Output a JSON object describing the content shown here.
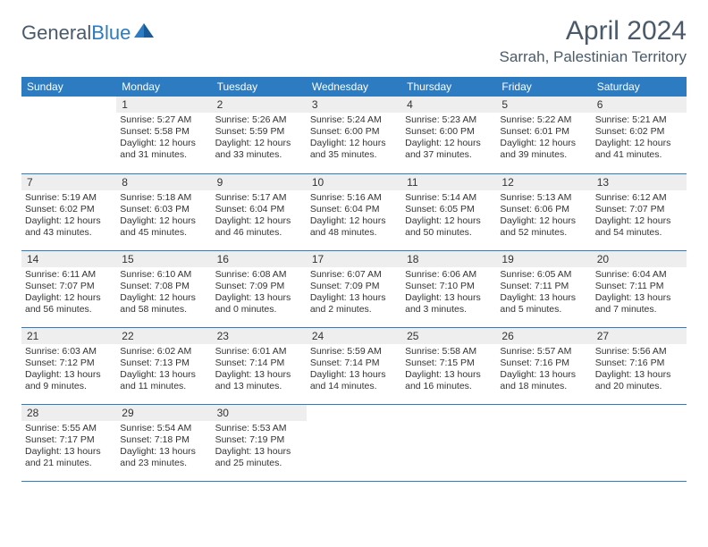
{
  "logo": {
    "text_part1": "General",
    "text_part2": "Blue"
  },
  "title": "April 2024",
  "location": "Sarrah, Palestinian Territory",
  "colors": {
    "header_bg": "#2d7bc0",
    "header_text": "#ffffff",
    "day_number_bg": "#eeeeee",
    "text": "#333333",
    "border": "#2d7bc0",
    "logo_gray": "#4a5a6a",
    "logo_blue": "#2d7bc0"
  },
  "day_names": [
    "Sunday",
    "Monday",
    "Tuesday",
    "Wednesday",
    "Thursday",
    "Friday",
    "Saturday"
  ],
  "weeks": [
    [
      null,
      {
        "n": "1",
        "sr": "5:27 AM",
        "ss": "5:58 PM",
        "dl": "12 hours and 31 minutes."
      },
      {
        "n": "2",
        "sr": "5:26 AM",
        "ss": "5:59 PM",
        "dl": "12 hours and 33 minutes."
      },
      {
        "n": "3",
        "sr": "5:24 AM",
        "ss": "6:00 PM",
        "dl": "12 hours and 35 minutes."
      },
      {
        "n": "4",
        "sr": "5:23 AM",
        "ss": "6:00 PM",
        "dl": "12 hours and 37 minutes."
      },
      {
        "n": "5",
        "sr": "5:22 AM",
        "ss": "6:01 PM",
        "dl": "12 hours and 39 minutes."
      },
      {
        "n": "6",
        "sr": "5:21 AM",
        "ss": "6:02 PM",
        "dl": "12 hours and 41 minutes."
      }
    ],
    [
      {
        "n": "7",
        "sr": "5:19 AM",
        "ss": "6:02 PM",
        "dl": "12 hours and 43 minutes."
      },
      {
        "n": "8",
        "sr": "5:18 AM",
        "ss": "6:03 PM",
        "dl": "12 hours and 45 minutes."
      },
      {
        "n": "9",
        "sr": "5:17 AM",
        "ss": "6:04 PM",
        "dl": "12 hours and 46 minutes."
      },
      {
        "n": "10",
        "sr": "5:16 AM",
        "ss": "6:04 PM",
        "dl": "12 hours and 48 minutes."
      },
      {
        "n": "11",
        "sr": "5:14 AM",
        "ss": "6:05 PM",
        "dl": "12 hours and 50 minutes."
      },
      {
        "n": "12",
        "sr": "5:13 AM",
        "ss": "6:06 PM",
        "dl": "12 hours and 52 minutes."
      },
      {
        "n": "13",
        "sr": "6:12 AM",
        "ss": "7:07 PM",
        "dl": "12 hours and 54 minutes."
      }
    ],
    [
      {
        "n": "14",
        "sr": "6:11 AM",
        "ss": "7:07 PM",
        "dl": "12 hours and 56 minutes."
      },
      {
        "n": "15",
        "sr": "6:10 AM",
        "ss": "7:08 PM",
        "dl": "12 hours and 58 minutes."
      },
      {
        "n": "16",
        "sr": "6:08 AM",
        "ss": "7:09 PM",
        "dl": "13 hours and 0 minutes."
      },
      {
        "n": "17",
        "sr": "6:07 AM",
        "ss": "7:09 PM",
        "dl": "13 hours and 2 minutes."
      },
      {
        "n": "18",
        "sr": "6:06 AM",
        "ss": "7:10 PM",
        "dl": "13 hours and 3 minutes."
      },
      {
        "n": "19",
        "sr": "6:05 AM",
        "ss": "7:11 PM",
        "dl": "13 hours and 5 minutes."
      },
      {
        "n": "20",
        "sr": "6:04 AM",
        "ss": "7:11 PM",
        "dl": "13 hours and 7 minutes."
      }
    ],
    [
      {
        "n": "21",
        "sr": "6:03 AM",
        "ss": "7:12 PM",
        "dl": "13 hours and 9 minutes."
      },
      {
        "n": "22",
        "sr": "6:02 AM",
        "ss": "7:13 PM",
        "dl": "13 hours and 11 minutes."
      },
      {
        "n": "23",
        "sr": "6:01 AM",
        "ss": "7:14 PM",
        "dl": "13 hours and 13 minutes."
      },
      {
        "n": "24",
        "sr": "5:59 AM",
        "ss": "7:14 PM",
        "dl": "13 hours and 14 minutes."
      },
      {
        "n": "25",
        "sr": "5:58 AM",
        "ss": "7:15 PM",
        "dl": "13 hours and 16 minutes."
      },
      {
        "n": "26",
        "sr": "5:57 AM",
        "ss": "7:16 PM",
        "dl": "13 hours and 18 minutes."
      },
      {
        "n": "27",
        "sr": "5:56 AM",
        "ss": "7:16 PM",
        "dl": "13 hours and 20 minutes."
      }
    ],
    [
      {
        "n": "28",
        "sr": "5:55 AM",
        "ss": "7:17 PM",
        "dl": "13 hours and 21 minutes."
      },
      {
        "n": "29",
        "sr": "5:54 AM",
        "ss": "7:18 PM",
        "dl": "13 hours and 23 minutes."
      },
      {
        "n": "30",
        "sr": "5:53 AM",
        "ss": "7:19 PM",
        "dl": "13 hours and 25 minutes."
      },
      null,
      null,
      null,
      null
    ]
  ],
  "labels": {
    "sunrise": "Sunrise:",
    "sunset": "Sunset:",
    "daylight": "Daylight:"
  }
}
